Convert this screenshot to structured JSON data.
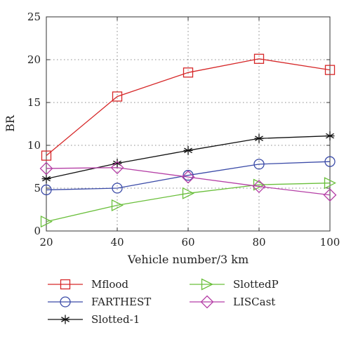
{
  "chart_data": {
    "type": "line",
    "xlabel": "Vehicle number/3 km",
    "ylabel": "BR",
    "x": [
      20,
      40,
      60,
      80,
      100
    ],
    "xlim": [
      20,
      100
    ],
    "ylim": [
      0,
      25
    ],
    "xticks": [
      "20",
      "40",
      "60",
      "80",
      "100"
    ],
    "yticks": [
      "0",
      "5",
      "10",
      "15",
      "20",
      "25"
    ],
    "grid": true,
    "legend_placement": "bottom",
    "series": [
      {
        "name": "Mflood",
        "values": [
          8.8,
          15.7,
          18.5,
          20.1,
          18.8
        ],
        "color": "#d62728",
        "marker": "square"
      },
      {
        "name": "FARTHEST",
        "values": [
          4.8,
          5.0,
          6.5,
          7.8,
          8.1
        ],
        "color": "#3b4ba8",
        "marker": "circle"
      },
      {
        "name": "Slotted-1",
        "values": [
          6.1,
          7.9,
          9.4,
          10.8,
          11.1
        ],
        "color": "#111111",
        "marker": "asterisk"
      },
      {
        "name": "SlottedP",
        "values": [
          1.1,
          3.0,
          4.4,
          5.4,
          5.6
        ],
        "color": "#6abf3b",
        "marker": "triangle-right"
      },
      {
        "name": "LISCast",
        "values": [
          7.3,
          7.4,
          6.3,
          5.2,
          4.2
        ],
        "color": "#b53fa6",
        "marker": "diamond"
      }
    ]
  }
}
